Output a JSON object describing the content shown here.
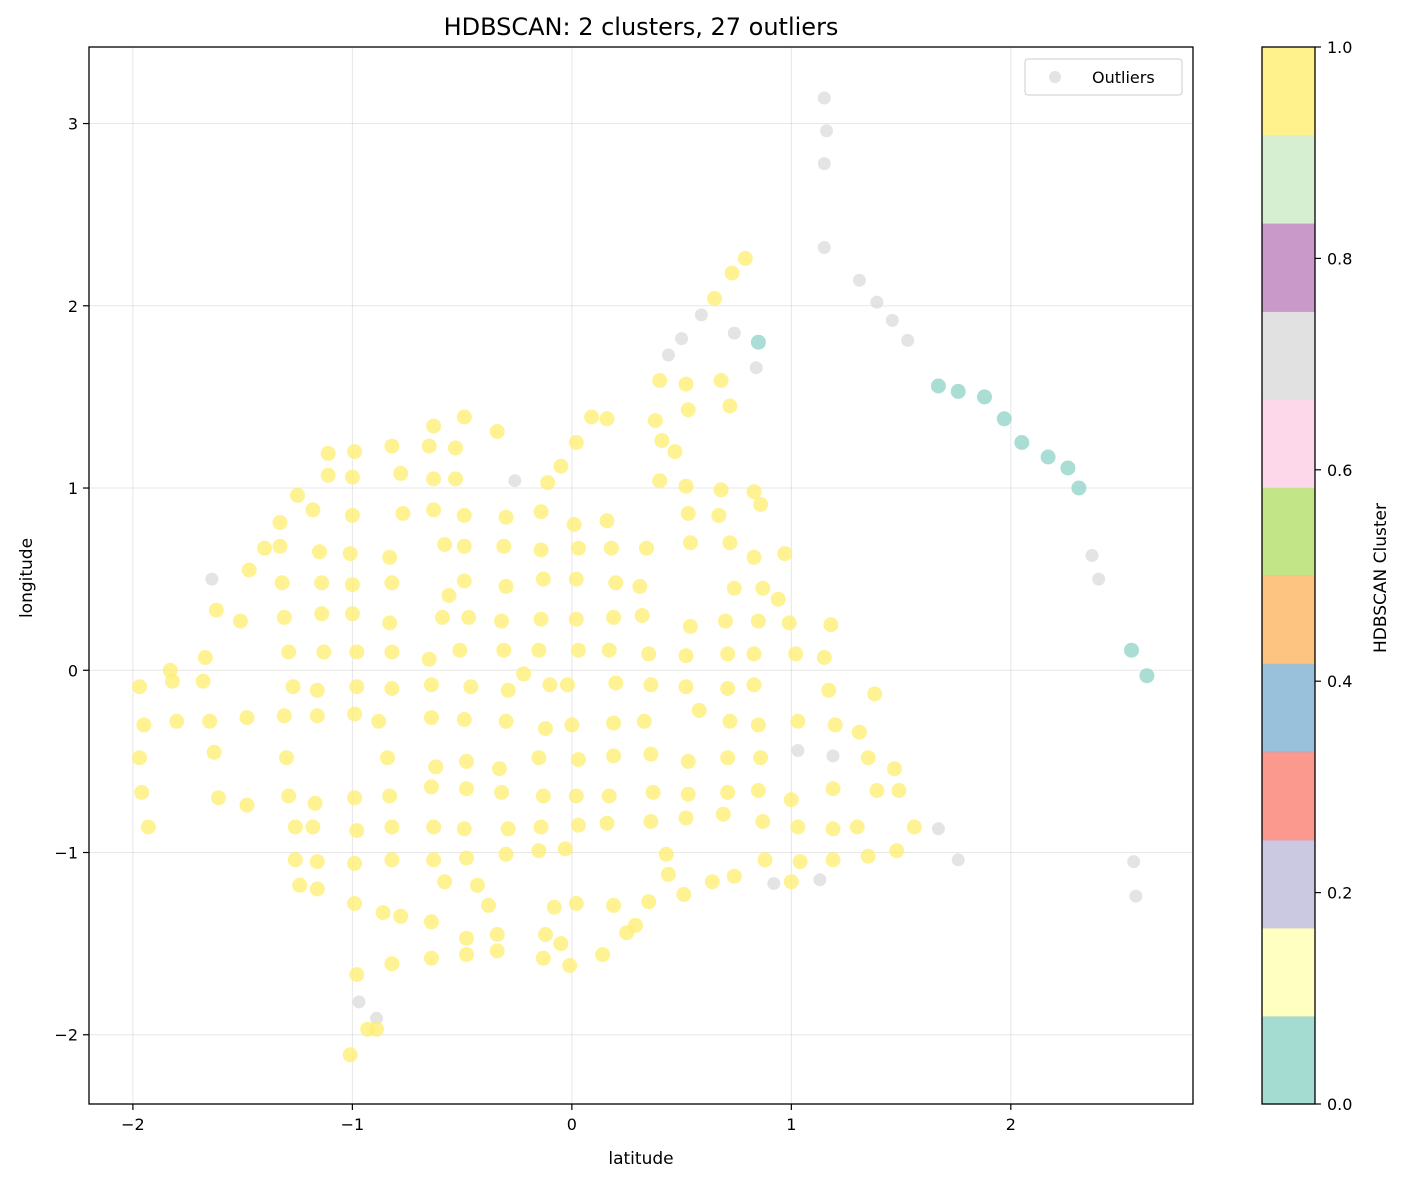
{
  "chart_data": {
    "type": "scatter",
    "title": "HDBSCAN: 2 clusters, 27 outliers",
    "xlabel": "latitude",
    "ylabel": "longitude",
    "xlim": [
      -2.2,
      2.83
    ],
    "ylim": [
      -2.38,
      3.42
    ],
    "xticks": [
      -2,
      -1,
      0,
      1,
      2
    ],
    "yticks": [
      -2,
      -1,
      0,
      1,
      2,
      3
    ],
    "xtick_labels": [
      "−2",
      "−1",
      "0",
      "1",
      "2"
    ],
    "ytick_labels": [
      "−2",
      "−1",
      "0",
      "1",
      "2",
      "3"
    ],
    "grid": true,
    "legend": {
      "entries": [
        "Outliers"
      ],
      "placement": "upper right"
    },
    "colorbar": {
      "label": "HDBSCAN Cluster",
      "range": [
        0.0,
        1.0
      ],
      "ticks": [
        0.0,
        0.2,
        0.4,
        0.6,
        0.8,
        1.0
      ],
      "tick_labels": [
        "0.0",
        "0.2",
        "0.4",
        "0.6",
        "0.8",
        "1.0"
      ],
      "colormap": "Set3",
      "colors": [
        "#8dd3c7",
        "#ffffb3",
        "#bebada",
        "#fb8072",
        "#80b1d3",
        "#fdb462",
        "#b3de69",
        "#fccde5",
        "#d9d9d9",
        "#bc80bd",
        "#ccebc5",
        "#ffed6f"
      ]
    },
    "series": [
      {
        "name": "Outliers",
        "color": "#d9d9d9",
        "points": [
          [
            1.15,
            3.14
          ],
          [
            1.16,
            2.96
          ],
          [
            1.15,
            2.78
          ],
          [
            1.15,
            2.32
          ],
          [
            1.31,
            2.14
          ],
          [
            1.39,
            2.02
          ],
          [
            1.46,
            1.92
          ],
          [
            1.53,
            1.81
          ],
          [
            0.59,
            1.95
          ],
          [
            0.5,
            1.82
          ],
          [
            0.44,
            1.73
          ],
          [
            0.74,
            1.85
          ],
          [
            0.84,
            1.66
          ],
          [
            -0.26,
            1.04
          ],
          [
            -1.64,
            0.5
          ],
          [
            2.37,
            0.63
          ],
          [
            2.4,
            0.5
          ],
          [
            1.03,
            -0.44
          ],
          [
            1.19,
            -0.47
          ],
          [
            1.67,
            -0.87
          ],
          [
            1.76,
            -1.04
          ],
          [
            0.92,
            -1.17
          ],
          [
            1.13,
            -1.15
          ],
          [
            2.56,
            -1.05
          ],
          [
            2.57,
            -1.24
          ],
          [
            -0.97,
            -1.82
          ],
          [
            -0.89,
            -1.91
          ]
        ]
      },
      {
        "name": "",
        "color": "#8dd3c7",
        "points": [
          [
            0.85,
            1.8
          ],
          [
            1.67,
            1.56
          ],
          [
            1.76,
            1.53
          ],
          [
            1.88,
            1.5
          ],
          [
            1.97,
            1.38
          ],
          [
            2.05,
            1.25
          ],
          [
            2.17,
            1.17
          ],
          [
            2.26,
            1.11
          ],
          [
            2.31,
            1.0
          ],
          [
            2.55,
            0.11
          ],
          [
            2.62,
            -0.03
          ]
        ]
      },
      {
        "name": "",
        "color": "#ffed6f",
        "points": [
          [
            0.79,
            2.26
          ],
          [
            0.73,
            2.18
          ],
          [
            0.65,
            2.04
          ],
          [
            0.4,
            1.59
          ],
          [
            0.52,
            1.57
          ],
          [
            0.68,
            1.59
          ],
          [
            0.72,
            1.45
          ],
          [
            0.53,
            1.43
          ],
          [
            0.38,
            1.37
          ],
          [
            0.41,
            1.26
          ],
          [
            0.47,
            1.2
          ],
          [
            0.09,
            1.39
          ],
          [
            0.16,
            1.38
          ],
          [
            0.02,
            1.25
          ],
          [
            -0.05,
            1.12
          ],
          [
            -0.11,
            1.03
          ],
          [
            0.4,
            1.04
          ],
          [
            0.52,
            1.01
          ],
          [
            0.68,
            0.99
          ],
          [
            0.83,
            0.98
          ],
          [
            0.86,
            0.91
          ],
          [
            0.53,
            0.86
          ],
          [
            0.67,
            0.85
          ],
          [
            0.16,
            0.82
          ],
          [
            0.01,
            0.8
          ],
          [
            -0.14,
            0.87
          ],
          [
            -0.3,
            0.84
          ],
          [
            -0.49,
            1.39
          ],
          [
            -0.34,
            1.31
          ],
          [
            -0.63,
            1.34
          ],
          [
            -0.53,
            1.22
          ],
          [
            -0.65,
            1.23
          ],
          [
            -0.82,
            1.23
          ],
          [
            -0.63,
            1.05
          ],
          [
            -0.53,
            1.05
          ],
          [
            -0.78,
            1.08
          ],
          [
            -0.99,
            1.2
          ],
          [
            -1.11,
            1.19
          ],
          [
            -1.11,
            1.07
          ],
          [
            -1.0,
            1.06
          ],
          [
            -1.25,
            0.96
          ],
          [
            -1.18,
            0.88
          ],
          [
            -1.0,
            0.85
          ],
          [
            -1.33,
            0.81
          ],
          [
            -0.77,
            0.86
          ],
          [
            -0.63,
            0.88
          ],
          [
            -0.49,
            0.85
          ],
          [
            0.54,
            0.7
          ],
          [
            0.72,
            0.7
          ],
          [
            0.83,
            0.62
          ],
          [
            0.97,
            0.64
          ],
          [
            0.34,
            0.67
          ],
          [
            0.18,
            0.67
          ],
          [
            0.03,
            0.67
          ],
          [
            -0.14,
            0.66
          ],
          [
            -0.31,
            0.68
          ],
          [
            -0.49,
            0.68
          ],
          [
            -0.58,
            0.69
          ],
          [
            -0.83,
            0.62
          ],
          [
            -1.01,
            0.64
          ],
          [
            -1.15,
            0.65
          ],
          [
            -1.33,
            0.68
          ],
          [
            -1.4,
            0.67
          ],
          [
            -1.47,
            0.55
          ],
          [
            -1.32,
            0.48
          ],
          [
            -1.14,
            0.48
          ],
          [
            -1.0,
            0.47
          ],
          [
            -0.82,
            0.48
          ],
          [
            -0.49,
            0.49
          ],
          [
            -0.56,
            0.41
          ],
          [
            -0.3,
            0.46
          ],
          [
            -0.13,
            0.5
          ],
          [
            0.02,
            0.5
          ],
          [
            0.2,
            0.48
          ],
          [
            0.31,
            0.46
          ],
          [
            0.74,
            0.45
          ],
          [
            0.87,
            0.45
          ],
          [
            0.94,
            0.39
          ],
          [
            -1.62,
            0.33
          ],
          [
            -1.51,
            0.27
          ],
          [
            -1.31,
            0.29
          ],
          [
            -1.14,
            0.31
          ],
          [
            -1.0,
            0.31
          ],
          [
            -0.83,
            0.26
          ],
          [
            -0.59,
            0.29
          ],
          [
            -0.47,
            0.29
          ],
          [
            -0.32,
            0.27
          ],
          [
            -0.14,
            0.28
          ],
          [
            0.02,
            0.28
          ],
          [
            0.19,
            0.29
          ],
          [
            0.32,
            0.3
          ],
          [
            0.54,
            0.24
          ],
          [
            0.7,
            0.27
          ],
          [
            0.85,
            0.27
          ],
          [
            0.99,
            0.26
          ],
          [
            1.18,
            0.25
          ],
          [
            -1.67,
            0.07
          ],
          [
            -1.29,
            0.1
          ],
          [
            -1.13,
            0.1
          ],
          [
            -0.98,
            0.1
          ],
          [
            -0.82,
            0.1
          ],
          [
            -0.65,
            0.06
          ],
          [
            -0.51,
            0.11
          ],
          [
            -0.31,
            0.11
          ],
          [
            -0.15,
            0.11
          ],
          [
            0.03,
            0.11
          ],
          [
            0.17,
            0.11
          ],
          [
            0.35,
            0.09
          ],
          [
            0.52,
            0.08
          ],
          [
            0.71,
            0.09
          ],
          [
            0.83,
            0.09
          ],
          [
            1.02,
            0.09
          ],
          [
            1.15,
            0.07
          ],
          [
            -1.83,
            0.0
          ],
          [
            -1.82,
            -0.06
          ],
          [
            -1.97,
            -0.09
          ],
          [
            -1.68,
            -0.06
          ],
          [
            -1.27,
            -0.09
          ],
          [
            -1.16,
            -0.11
          ],
          [
            -0.98,
            -0.09
          ],
          [
            -0.82,
            -0.1
          ],
          [
            -0.64,
            -0.08
          ],
          [
            -0.46,
            -0.09
          ],
          [
            -0.29,
            -0.11
          ],
          [
            -0.22,
            -0.02
          ],
          [
            -0.1,
            -0.08
          ],
          [
            -0.02,
            -0.08
          ],
          [
            0.2,
            -0.07
          ],
          [
            0.36,
            -0.08
          ],
          [
            0.52,
            -0.09
          ],
          [
            0.71,
            -0.1
          ],
          [
            0.83,
            -0.08
          ],
          [
            1.17,
            -0.11
          ],
          [
            1.38,
            -0.13
          ],
          [
            -1.95,
            -0.3
          ],
          [
            -1.8,
            -0.28
          ],
          [
            -1.65,
            -0.28
          ],
          [
            -1.48,
            -0.26
          ],
          [
            -1.31,
            -0.25
          ],
          [
            -1.16,
            -0.25
          ],
          [
            -0.99,
            -0.24
          ],
          [
            -0.88,
            -0.28
          ],
          [
            -0.64,
            -0.26
          ],
          [
            -0.49,
            -0.27
          ],
          [
            -0.3,
            -0.28
          ],
          [
            -0.12,
            -0.32
          ],
          [
            0.0,
            -0.3
          ],
          [
            0.19,
            -0.29
          ],
          [
            0.33,
            -0.28
          ],
          [
            0.58,
            -0.22
          ],
          [
            0.72,
            -0.28
          ],
          [
            0.85,
            -0.3
          ],
          [
            1.03,
            -0.28
          ],
          [
            1.2,
            -0.3
          ],
          [
            1.31,
            -0.34
          ],
          [
            -1.97,
            -0.48
          ],
          [
            -1.63,
            -0.45
          ],
          [
            -1.3,
            -0.48
          ],
          [
            -0.84,
            -0.48
          ],
          [
            -0.62,
            -0.53
          ],
          [
            -0.48,
            -0.5
          ],
          [
            -0.33,
            -0.54
          ],
          [
            -0.15,
            -0.48
          ],
          [
            0.03,
            -0.49
          ],
          [
            0.19,
            -0.47
          ],
          [
            0.36,
            -0.46
          ],
          [
            0.53,
            -0.5
          ],
          [
            0.71,
            -0.48
          ],
          [
            0.86,
            -0.48
          ],
          [
            1.35,
            -0.48
          ],
          [
            1.47,
            -0.54
          ],
          [
            -1.96,
            -0.67
          ],
          [
            -1.61,
            -0.7
          ],
          [
            -1.48,
            -0.74
          ],
          [
            -1.29,
            -0.69
          ],
          [
            -1.17,
            -0.73
          ],
          [
            -0.99,
            -0.7
          ],
          [
            -0.83,
            -0.69
          ],
          [
            -0.64,
            -0.64
          ],
          [
            -0.48,
            -0.65
          ],
          [
            -0.32,
            -0.67
          ],
          [
            -0.13,
            -0.69
          ],
          [
            0.02,
            -0.69
          ],
          [
            0.17,
            -0.69
          ],
          [
            0.37,
            -0.67
          ],
          [
            0.53,
            -0.68
          ],
          [
            0.71,
            -0.67
          ],
          [
            0.85,
            -0.66
          ],
          [
            1.0,
            -0.71
          ],
          [
            1.19,
            -0.65
          ],
          [
            1.39,
            -0.66
          ],
          [
            1.49,
            -0.66
          ],
          [
            -1.93,
            -0.86
          ],
          [
            -1.26,
            -0.86
          ],
          [
            -1.18,
            -0.86
          ],
          [
            -0.98,
            -0.88
          ],
          [
            -0.82,
            -0.86
          ],
          [
            -0.63,
            -0.86
          ],
          [
            -0.49,
            -0.87
          ],
          [
            -0.29,
            -0.87
          ],
          [
            -0.14,
            -0.86
          ],
          [
            0.03,
            -0.85
          ],
          [
            0.16,
            -0.84
          ],
          [
            0.36,
            -0.83
          ],
          [
            0.52,
            -0.81
          ],
          [
            0.69,
            -0.79
          ],
          [
            0.87,
            -0.83
          ],
          [
            1.03,
            -0.86
          ],
          [
            1.19,
            -0.87
          ],
          [
            1.3,
            -0.86
          ],
          [
            1.56,
            -0.86
          ],
          [
            -1.26,
            -1.04
          ],
          [
            -1.16,
            -1.05
          ],
          [
            -0.99,
            -1.06
          ],
          [
            -0.82,
            -1.04
          ],
          [
            -0.63,
            -1.04
          ],
          [
            -0.48,
            -1.03
          ],
          [
            -0.3,
            -1.01
          ],
          [
            -0.15,
            -0.99
          ],
          [
            -0.03,
            -0.98
          ],
          [
            0.43,
            -1.01
          ],
          [
            0.88,
            -1.04
          ],
          [
            1.04,
            -1.05
          ],
          [
            1.19,
            -1.04
          ],
          [
            1.35,
            -1.02
          ],
          [
            1.48,
            -0.99
          ],
          [
            -1.24,
            -1.18
          ],
          [
            -1.16,
            -1.2
          ],
          [
            -0.58,
            -1.16
          ],
          [
            -0.43,
            -1.18
          ],
          [
            0.44,
            -1.12
          ],
          [
            0.64,
            -1.16
          ],
          [
            0.74,
            -1.13
          ],
          [
            1.0,
            -1.16
          ],
          [
            -0.99,
            -1.28
          ],
          [
            -0.86,
            -1.33
          ],
          [
            -0.78,
            -1.35
          ],
          [
            -0.64,
            -1.38
          ],
          [
            -0.38,
            -1.29
          ],
          [
            -0.08,
            -1.3
          ],
          [
            0.02,
            -1.28
          ],
          [
            0.19,
            -1.29
          ],
          [
            0.35,
            -1.27
          ],
          [
            0.51,
            -1.23
          ],
          [
            -0.48,
            -1.47
          ],
          [
            -0.34,
            -1.45
          ],
          [
            -0.12,
            -1.45
          ],
          [
            -0.05,
            -1.5
          ],
          [
            0.25,
            -1.44
          ],
          [
            0.29,
            -1.4
          ],
          [
            -0.64,
            -1.58
          ],
          [
            -0.48,
            -1.56
          ],
          [
            -0.34,
            -1.54
          ],
          [
            -0.13,
            -1.58
          ],
          [
            -0.01,
            -1.62
          ],
          [
            0.14,
            -1.56
          ],
          [
            -0.82,
            -1.61
          ],
          [
            -0.98,
            -1.67
          ],
          [
            -0.93,
            -1.97
          ],
          [
            -0.89,
            -1.97
          ],
          [
            -1.01,
            -2.11
          ]
        ]
      }
    ]
  }
}
